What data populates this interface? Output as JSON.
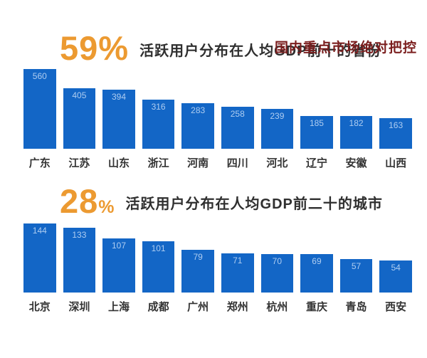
{
  "slide_title": "国内重点市场绝对把控",
  "colors": {
    "bar_blue": "#1366C6",
    "bar_value_label": "#AECDF1",
    "stat_orange": "#EC9A31",
    "title_red": "#7B1E1E",
    "heading_text": "#2f2f2f"
  },
  "chart_data": [
    {
      "type": "bar",
      "stat_value": "59",
      "stat_suffix": "%",
      "title": "活跃用户分布在人均GDP前十的省份",
      "categories": [
        "广东",
        "江苏",
        "山东",
        "浙江",
        "河南",
        "四川",
        "河北",
        "辽宁",
        "安徽",
        "山西"
      ],
      "values": [
        560,
        405,
        394,
        316,
        283,
        258,
        239,
        185,
        182,
        163
      ],
      "xlabel": "",
      "ylabel": "",
      "ylim": [
        0,
        560
      ],
      "grid": false,
      "legend": false,
      "value_labels": "inside-top"
    },
    {
      "type": "bar",
      "stat_value": "28",
      "stat_suffix": "%",
      "title": "活跃用户分布在人均GDP前二十的城市",
      "categories": [
        "北京",
        "深圳",
        "上海",
        "成都",
        "广州",
        "郑州",
        "杭州",
        "重庆",
        "青岛",
        "西安"
      ],
      "values": [
        144,
        133,
        107,
        101,
        79,
        71,
        70,
        69,
        57,
        54
      ],
      "xlabel": "",
      "ylabel": "",
      "ylim": [
        0,
        144
      ],
      "grid": false,
      "legend": false,
      "value_labels": "inside-top"
    }
  ]
}
